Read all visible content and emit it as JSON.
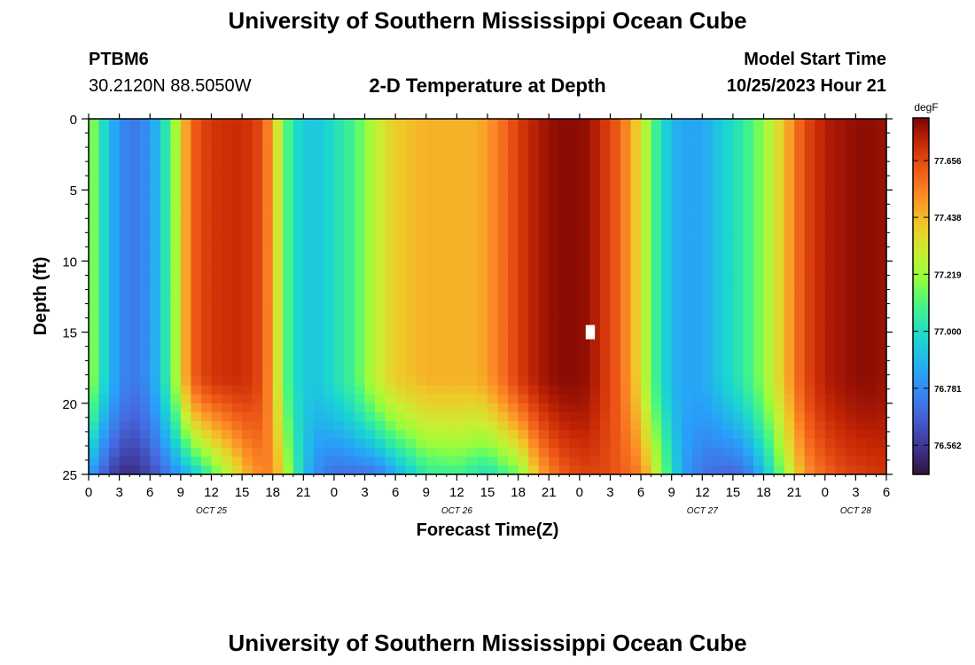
{
  "header": {
    "title": "University of Southern Mississippi Ocean Cube",
    "station_id": "PTBM6",
    "station_coords": "30.2120N  88.5050W",
    "subtitle": "2-D Temperature at Depth",
    "model_start_label": "Model Start Time",
    "model_start_value": "10/25/2023 Hour 21"
  },
  "footer": {
    "title": "University of Southern Mississippi Ocean Cube"
  },
  "chart_data": {
    "type": "heatmap",
    "title": "2-D Temperature at Depth",
    "xlabel": "Forecast Time(Z)",
    "ylabel": "Depth (ft)",
    "x_tick_labels": [
      "0",
      "3",
      "6",
      "9",
      "12",
      "15",
      "18",
      "21",
      "0",
      "3",
      "6",
      "9",
      "12",
      "15",
      "18",
      "21",
      "0",
      "3",
      "6",
      "9",
      "12",
      "15",
      "18",
      "21",
      "0",
      "3",
      "6"
    ],
    "x_range_hours": [
      0,
      78
    ],
    "date_labels": [
      {
        "label": "OCT 25",
        "hour": 12
      },
      {
        "label": "OCT 26",
        "hour": 36
      },
      {
        "label": "OCT 27",
        "hour": 60
      },
      {
        "label": "OCT 28",
        "hour": 75
      }
    ],
    "y_tick_labels": [
      "0",
      "5",
      "10",
      "15",
      "20",
      "25"
    ],
    "ylim": [
      0,
      25
    ],
    "y_inverted": true,
    "colorbar": {
      "unit": "degF",
      "tick_labels": [
        "77.656",
        "77.438",
        "77.219",
        "77.000",
        "76.781",
        "76.562"
      ],
      "tick_values": [
        77.656,
        77.438,
        77.219,
        77.0,
        76.781,
        76.562
      ],
      "range": [
        76.45,
        77.82
      ]
    },
    "surface_temperature_profile": {
      "hours": [
        0,
        2,
        4,
        6,
        8,
        9,
        10,
        12,
        15,
        17,
        18,
        19,
        20,
        22,
        24,
        26,
        28,
        30,
        33,
        36,
        38,
        40,
        42,
        44,
        46,
        48,
        49,
        50,
        52,
        54,
        55,
        56,
        57,
        58,
        60,
        62,
        64,
        66,
        68,
        69,
        70,
        71,
        72,
        74,
        76,
        78
      ],
      "values": [
        77.25,
        76.9,
        76.72,
        76.8,
        77.1,
        77.35,
        77.6,
        77.7,
        77.72,
        77.65,
        77.45,
        77.2,
        77.0,
        76.92,
        77.0,
        77.1,
        77.28,
        77.4,
        77.45,
        77.45,
        77.45,
        77.55,
        77.68,
        77.76,
        77.8,
        77.8,
        77.78,
        77.72,
        77.6,
        77.35,
        77.15,
        77.0,
        76.9,
        76.85,
        76.85,
        76.95,
        77.05,
        77.2,
        77.42,
        77.55,
        77.65,
        77.7,
        77.75,
        77.78,
        77.8,
        77.78
      ]
    },
    "bottom_temperature_profile": {
      "hours": [
        0,
        2,
        4,
        6,
        8,
        10,
        12,
        14,
        16,
        18,
        20,
        22,
        24,
        28,
        30,
        33,
        36,
        39,
        42,
        44,
        46,
        48,
        50,
        52,
        54,
        56,
        58,
        60,
        62,
        64,
        66,
        68,
        70,
        72,
        74,
        76,
        78
      ],
      "values": [
        76.85,
        76.6,
        76.52,
        76.6,
        76.75,
        76.9,
        77.1,
        77.3,
        77.5,
        77.55,
        77.1,
        76.8,
        76.7,
        76.72,
        76.85,
        77.05,
        77.08,
        77.0,
        77.15,
        77.45,
        77.6,
        77.66,
        77.66,
        77.62,
        77.55,
        77.2,
        76.85,
        76.72,
        76.68,
        76.7,
        76.9,
        77.2,
        77.5,
        77.6,
        77.66,
        77.68,
        77.7
      ]
    },
    "missing_cell": {
      "hour": 49,
      "depth_ft": 15
    }
  }
}
